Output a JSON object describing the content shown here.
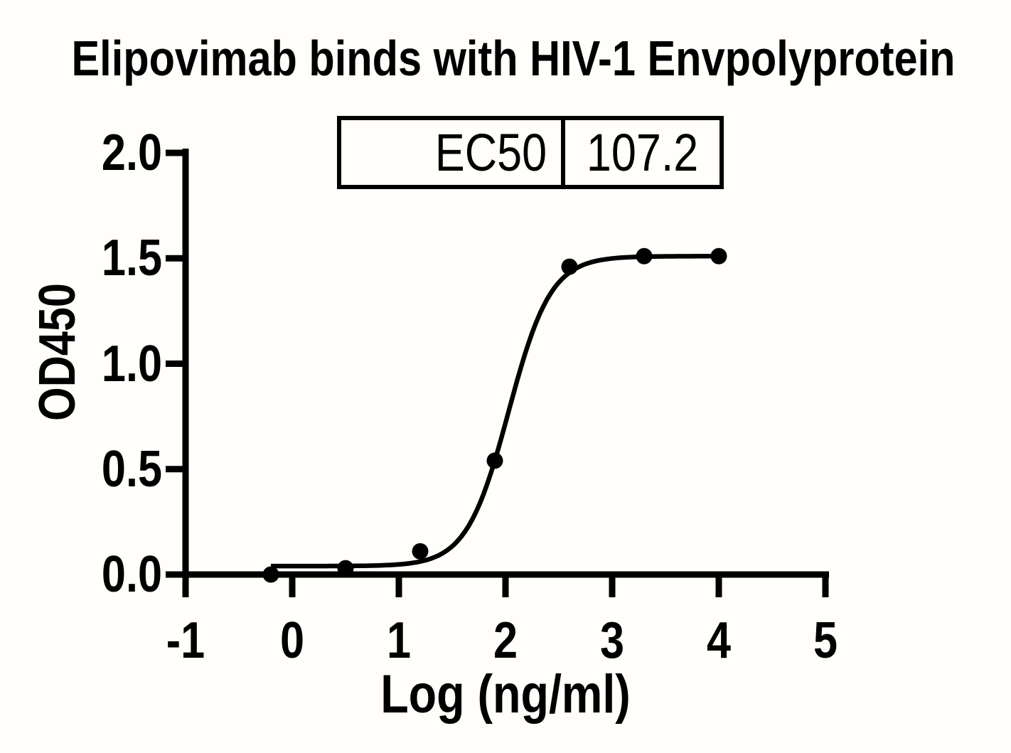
{
  "title": "Elipovimab binds with HIV-1 Envpolyprotein",
  "ec50_table": {
    "label": "EC50",
    "value": "107.2"
  },
  "chart_data": {
    "type": "scatter",
    "title": "Elipovimab binds with HIV-1 Envpolyprotein",
    "xlabel": "Log (ng/ml)",
    "ylabel": "OD450",
    "xlim": [
      -1,
      5
    ],
    "ylim": [
      0.0,
      2.0
    ],
    "grid": false,
    "legend": null,
    "x_ticks": [
      {
        "v": -1,
        "label": "-1"
      },
      {
        "v": 0,
        "label": "0"
      },
      {
        "v": 1,
        "label": "1"
      },
      {
        "v": 2,
        "label": "2"
      },
      {
        "v": 3,
        "label": "3"
      },
      {
        "v": 4,
        "label": "4"
      },
      {
        "v": 5,
        "label": "5"
      }
    ],
    "y_ticks": [
      {
        "v": 0.0,
        "label": "0.0"
      },
      {
        "v": 0.5,
        "label": "0.5"
      },
      {
        "v": 1.0,
        "label": "1.0"
      },
      {
        "v": 1.5,
        "label": "1.5"
      },
      {
        "v": 2.0,
        "label": "2.0"
      }
    ],
    "points": {
      "log_conc": [
        -0.2,
        0.5,
        1.2,
        1.9,
        2.6,
        3.3,
        4.0
      ],
      "od450": [
        0.0,
        0.03,
        0.11,
        0.54,
        1.46,
        1.51,
        1.51
      ]
    },
    "fit_curve": {
      "model": "four-parameter-logistic",
      "bottom": 0.04,
      "top": 1.51,
      "log_ec50": 2.03,
      "hill_slope": 2.2,
      "x_range": [
        -0.2,
        4.0
      ]
    },
    "ec50_label": "EC50",
    "ec50_value": "107.2",
    "marker_color": "#000000",
    "curve_color": "#000000"
  }
}
